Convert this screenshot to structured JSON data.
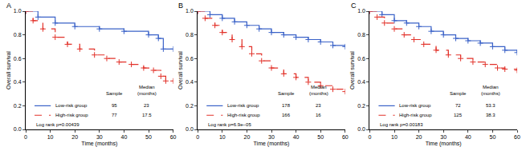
{
  "chart_data": [
    {
      "type": "line",
      "title": "A",
      "x_label": "Time (months)",
      "y_label": "Overall survival",
      "xlim": [
        0,
        60
      ],
      "xticks": [
        0,
        10,
        20,
        30,
        40,
        50,
        60
      ],
      "ylim": [
        0,
        1
      ],
      "yticks": [
        {
          "value": 0,
          "label": "0.0"
        },
        0.2,
        0.4,
        0.6,
        0.8,
        {
          "value": 1,
          "label": "1.0"
        }
      ],
      "legend_columns": [
        [
          "Sample"
        ],
        [
          "Median",
          "(months)"
        ]
      ],
      "annotations": [
        "Log rank p=0.00439"
      ],
      "series": [
        {
          "name": "Low-risk group",
          "color": "#3a62c8",
          "line_style": "solid",
          "marker": "cross",
          "sample": 95,
          "median": 23,
          "x": [
            0,
            5,
            12,
            20,
            30,
            40,
            50,
            54,
            56,
            60
          ],
          "values": [
            1.0,
            0.95,
            0.9,
            0.87,
            0.85,
            0.83,
            0.8,
            0.77,
            0.68,
            0.68
          ]
        },
        {
          "name": "High-risk group",
          "color": "#e2322a",
          "line_style": "dashed",
          "marker": "cross",
          "sample": 77,
          "median": 17.5,
          "x": [
            0,
            3,
            7,
            12,
            17,
            22,
            28,
            33,
            38,
            43,
            48,
            52,
            55,
            57,
            60
          ],
          "values": [
            1.0,
            0.92,
            0.85,
            0.78,
            0.72,
            0.68,
            0.63,
            0.6,
            0.57,
            0.55,
            0.52,
            0.5,
            0.45,
            0.41,
            0.41
          ]
        }
      ]
    },
    {
      "type": "line",
      "title": "B",
      "x_label": "Time (months)",
      "y_label": "Overall survival",
      "xlim": [
        0,
        60
      ],
      "xticks": [
        0,
        10,
        20,
        30,
        40,
        50,
        60
      ],
      "ylim": [
        0,
        1
      ],
      "yticks": [
        {
          "value": 0,
          "label": "0.0"
        },
        0.2,
        0.4,
        0.6,
        0.8,
        {
          "value": 1,
          "label": "1.0"
        }
      ],
      "legend_columns": [
        [
          "Sample"
        ],
        [
          "Median",
          "(months)"
        ]
      ],
      "annotations": [
        "Log rank p=6.9e−05"
      ],
      "series": [
        {
          "name": "Low-risk group",
          "color": "#3a62c8",
          "line_style": "solid",
          "marker": "cross",
          "sample": 178,
          "median": 23,
          "x": [
            0,
            5,
            10,
            15,
            20,
            25,
            30,
            35,
            40,
            45,
            50,
            55,
            60
          ],
          "values": [
            1.0,
            0.97,
            0.94,
            0.91,
            0.88,
            0.85,
            0.82,
            0.8,
            0.78,
            0.76,
            0.74,
            0.71,
            0.7
          ]
        },
        {
          "name": "High-risk group",
          "color": "#e2322a",
          "line_style": "dashed",
          "marker": "cross",
          "sample": 166,
          "median": 16,
          "x": [
            0,
            3,
            7,
            10,
            14,
            18,
            22,
            26,
            30,
            35,
            40,
            45,
            50,
            55,
            60
          ],
          "values": [
            1.0,
            0.94,
            0.88,
            0.82,
            0.76,
            0.7,
            0.64,
            0.58,
            0.52,
            0.47,
            0.44,
            0.4,
            0.37,
            0.34,
            0.32
          ]
        }
      ]
    },
    {
      "type": "line",
      "title": "C",
      "x_label": "Time (months)",
      "y_label": "Overall survival",
      "xlim": [
        0,
        60
      ],
      "xticks": [
        0,
        10,
        20,
        30,
        40,
        50,
        60
      ],
      "ylim": [
        0,
        1
      ],
      "yticks": [
        {
          "value": 0,
          "label": "0.0"
        },
        0.2,
        0.4,
        0.6,
        0.8,
        {
          "value": 1,
          "label": "1.0"
        }
      ],
      "legend_columns": [
        [
          "Sample"
        ],
        [
          "Median",
          "(months)"
        ]
      ],
      "annotations": [
        "Log rank p=0.00183"
      ],
      "series": [
        {
          "name": "Low-risk group",
          "color": "#3a62c8",
          "line_style": "solid",
          "marker": "cross",
          "sample": 72,
          "median": 53.3,
          "x": [
            0,
            5,
            10,
            15,
            20,
            25,
            30,
            35,
            40,
            45,
            50,
            55,
            60
          ],
          "values": [
            1.0,
            0.97,
            0.92,
            0.9,
            0.87,
            0.83,
            0.8,
            0.77,
            0.75,
            0.73,
            0.7,
            0.67,
            0.65
          ]
        },
        {
          "name": "High-risk group",
          "color": "#e2322a",
          "line_style": "dashed",
          "marker": "cross",
          "sample": 125,
          "median": 38.3,
          "x": [
            0,
            3,
            6,
            10,
            14,
            18,
            22,
            27,
            32,
            37,
            42,
            47,
            52,
            55,
            60
          ],
          "values": [
            1.0,
            0.95,
            0.9,
            0.85,
            0.8,
            0.76,
            0.72,
            0.67,
            0.63,
            0.6,
            0.57,
            0.55,
            0.52,
            0.51,
            0.5
          ]
        }
      ]
    }
  ]
}
